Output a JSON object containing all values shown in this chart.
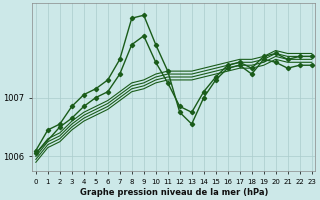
{
  "xlabel": "Graphe pression niveau de la mer (hPa)",
  "bg_color": "#cce8e8",
  "grid_color": "#aacccc",
  "line_color": "#1a5c1a",
  "ylim": [
    1005.75,
    1008.6
  ],
  "xlim": [
    -0.3,
    23.3
  ],
  "yticks": [
    1006,
    1007
  ],
  "xticks": [
    0,
    1,
    2,
    3,
    4,
    5,
    6,
    7,
    8,
    9,
    10,
    11,
    12,
    13,
    14,
    15,
    16,
    17,
    18,
    19,
    20,
    21,
    22,
    23
  ],
  "series": [
    {
      "x": [
        0,
        1,
        2,
        3,
        4,
        5,
        6,
        7,
        8,
        9,
        10,
        11,
        12,
        13,
        14,
        15,
        16,
        17,
        18,
        19,
        20,
        21,
        22,
        23
      ],
      "y": [
        1006.1,
        1006.45,
        1006.55,
        1006.85,
        1007.05,
        1007.15,
        1007.3,
        1007.65,
        1008.35,
        1008.4,
        1007.9,
        1007.45,
        1006.75,
        1006.55,
        1007.0,
        1007.3,
        1007.5,
        1007.55,
        1007.4,
        1007.65,
        1007.6,
        1007.5,
        1007.55,
        1007.55
      ],
      "marker": true,
      "lw": 1.0
    },
    {
      "x": [
        0,
        1,
        2,
        3,
        4,
        5,
        6,
        7,
        8,
        9,
        10,
        11,
        12,
        13,
        14,
        15,
        16,
        17,
        18,
        19,
        20,
        21,
        22,
        23
      ],
      "y": [
        1006.05,
        1006.3,
        1006.4,
        1006.6,
        1006.75,
        1006.85,
        1006.95,
        1007.1,
        1007.25,
        1007.3,
        1007.4,
        1007.45,
        1007.45,
        1007.45,
        1007.5,
        1007.55,
        1007.6,
        1007.65,
        1007.65,
        1007.7,
        1007.8,
        1007.75,
        1007.75,
        1007.75
      ],
      "marker": false,
      "lw": 0.8
    },
    {
      "x": [
        0,
        1,
        2,
        3,
        4,
        5,
        6,
        7,
        8,
        9,
        10,
        11,
        12,
        13,
        14,
        15,
        16,
        17,
        18,
        19,
        20,
        21,
        22,
        23
      ],
      "y": [
        1006.0,
        1006.25,
        1006.35,
        1006.55,
        1006.7,
        1006.8,
        1006.9,
        1007.05,
        1007.2,
        1007.25,
        1007.35,
        1007.4,
        1007.4,
        1007.4,
        1007.45,
        1007.5,
        1007.55,
        1007.6,
        1007.6,
        1007.65,
        1007.75,
        1007.7,
        1007.7,
        1007.7
      ],
      "marker": false,
      "lw": 0.8
    },
    {
      "x": [
        0,
        1,
        2,
        3,
        4,
        5,
        6,
        7,
        8,
        9,
        10,
        11,
        12,
        13,
        14,
        15,
        16,
        17,
        18,
        19,
        20,
        21,
        22,
        23
      ],
      "y": [
        1005.95,
        1006.2,
        1006.3,
        1006.5,
        1006.65,
        1006.75,
        1006.85,
        1007.0,
        1007.15,
        1007.2,
        1007.3,
        1007.35,
        1007.35,
        1007.35,
        1007.4,
        1007.45,
        1007.5,
        1007.55,
        1007.55,
        1007.6,
        1007.7,
        1007.65,
        1007.65,
        1007.65
      ],
      "marker": false,
      "lw": 0.8
    },
    {
      "x": [
        0,
        1,
        2,
        3,
        4,
        5,
        6,
        7,
        8,
        9,
        10,
        11,
        12,
        13,
        14,
        15,
        16,
        17,
        18,
        19,
        20,
        21,
        22,
        23
      ],
      "y": [
        1005.9,
        1006.15,
        1006.25,
        1006.45,
        1006.6,
        1006.7,
        1006.8,
        1006.95,
        1007.1,
        1007.15,
        1007.25,
        1007.3,
        1007.3,
        1007.3,
        1007.35,
        1007.4,
        1007.45,
        1007.5,
        1007.5,
        1007.55,
        1007.65,
        1007.6,
        1007.6,
        1007.6
      ],
      "marker": false,
      "lw": 0.8
    },
    {
      "x": [
        0,
        2,
        3,
        4,
        5,
        6,
        7,
        8,
        9,
        10,
        11,
        12,
        13,
        14,
        15,
        16,
        17,
        18,
        19,
        20,
        21,
        22,
        23
      ],
      "y": [
        1006.05,
        1006.5,
        1006.65,
        1006.85,
        1007.0,
        1007.1,
        1007.4,
        1007.9,
        1008.05,
        1007.6,
        1007.25,
        1006.85,
        1006.75,
        1007.1,
        1007.35,
        1007.55,
        1007.6,
        1007.5,
        1007.7,
        1007.75,
        1007.65,
        1007.7,
        1007.7
      ],
      "marker": true,
      "lw": 1.0
    }
  ]
}
